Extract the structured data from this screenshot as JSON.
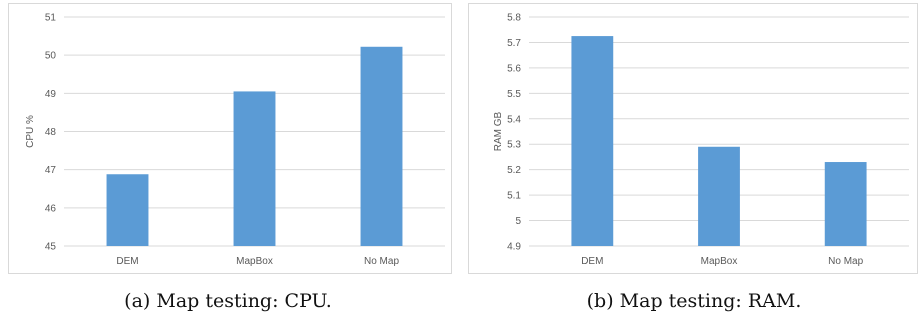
{
  "chart_data": [
    {
      "type": "bar",
      "categories": [
        "DEM",
        "MapBox",
        "No Map"
      ],
      "values": [
        46.88,
        49.05,
        50.22
      ],
      "ylabel": "CPU %",
      "ylim": [
        45,
        51
      ],
      "yticks": [
        "45",
        "46",
        "47",
        "48",
        "49",
        "50",
        "51"
      ],
      "grid": true,
      "bar_color": "#5b9bd5",
      "caption": "(a) Map testing: CPU."
    },
    {
      "type": "bar",
      "categories": [
        "DEM",
        "MapBox",
        "No Map"
      ],
      "values": [
        5.725,
        5.29,
        5.23
      ],
      "ylabel": "RAM GB",
      "ylim": [
        4.9,
        5.8
      ],
      "yticks": [
        "4.9",
        "5",
        "5.1",
        "5.2",
        "5.3",
        "5.4",
        "5.5",
        "5.6",
        "5.7",
        "5.8"
      ],
      "grid": true,
      "bar_color": "#5b9bd5",
      "caption": "(b) Map testing: RAM."
    }
  ]
}
